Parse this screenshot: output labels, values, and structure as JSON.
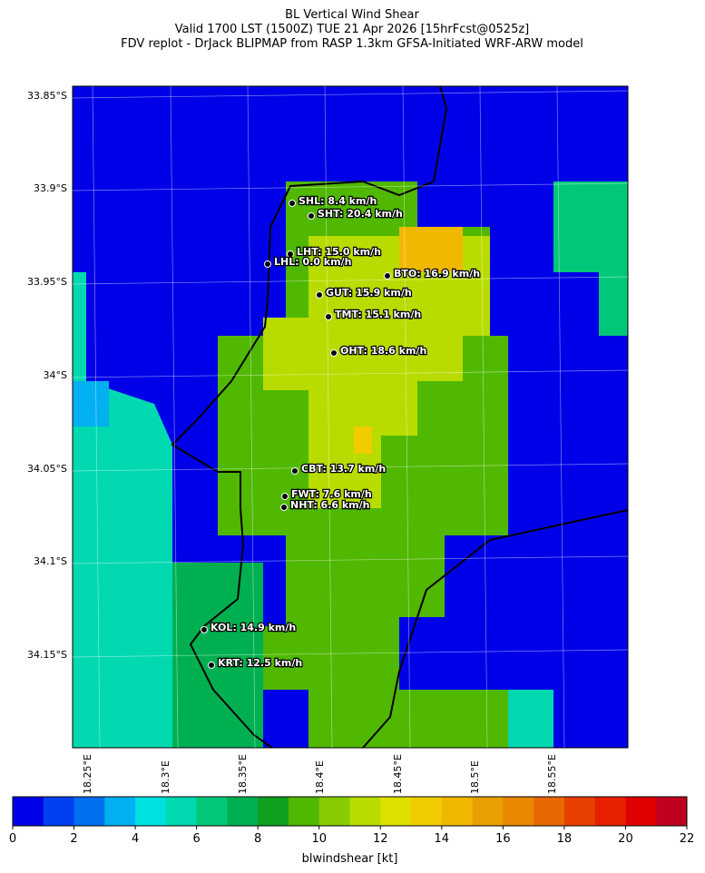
{
  "map": {
    "title": [
      "BL Vertical Wind Shear",
      "Valid 1700 LST (1500Z) TUE 21 Apr 2026 [15hrFcst@0525z]",
      "FDV replot - DrJack BLIPMAP from RASP 1.3km GFSA-Initiated WRF-ARW model"
    ],
    "lat_labels": [
      "33.85°S",
      "33.9°S",
      "33.95°S",
      "34°S",
      "34.05°S",
      "34.1°S",
      "34.15°S"
    ],
    "lon_labels": [
      "18.25°E",
      "18.3°E",
      "18.35°E",
      "18.4°E",
      "18.45°E",
      "18.5°E",
      "18.55°E"
    ],
    "stations": [
      "SHL: 8.4 km/h",
      "SHT: 20.4 km/h",
      "LHT: 15.0 km/h",
      "LHL: 0.0 km/h",
      "BTO: 16.9 km/h",
      "GUT: 15.9 km/h",
      "TMT: 15.1 km/h",
      "OHT: 18.6 km/h",
      "CBT: 13.7 km/h",
      "FWT: 7.6 km/h",
      "NHT: 6.6 km/h",
      "KOL: 14.9 km/h",
      "KRT: 12.5 km/h"
    ],
    "colorbar": {
      "label": "blwindshear [kt]",
      "lim": [
        0,
        22
      ],
      "ticks": [
        0,
        2,
        4,
        6,
        8,
        10,
        12,
        14,
        16,
        18,
        20,
        22
      ],
      "colors": [
        "#0000e8",
        "#0040f0",
        "#0070f0",
        "#00b0f0",
        "#00e0e0",
        "#00d8b0",
        "#00c878",
        "#00b050",
        "#10a020",
        "#50b800",
        "#88cc00",
        "#b8dc00",
        "#e0e000",
        "#f0cc00",
        "#f0b800",
        "#e8a000",
        "#e88800",
        "#e86800",
        "#e84000",
        "#e82000",
        "#e00000",
        "#c00020"
      ]
    }
  }
}
